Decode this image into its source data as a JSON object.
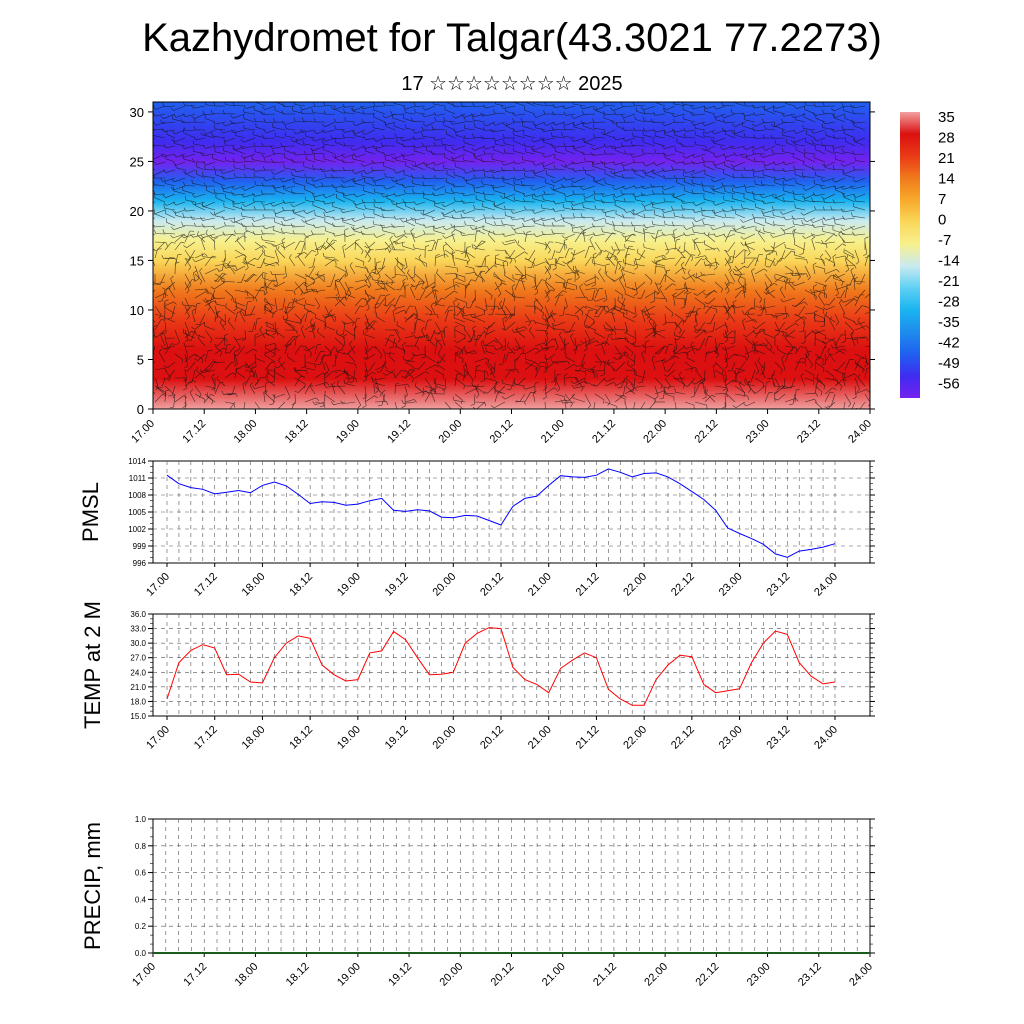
{
  "title": "Kazhydromet for Talgar(43.3021 77.2273)",
  "subtitle": "17 ☆☆☆☆☆☆☆☆ 2025",
  "time_ticks": [
    "17.00",
    "17.12",
    "18.00",
    "18.12",
    "19.00",
    "19.12",
    "20.00",
    "20.12",
    "21.00",
    "21.12",
    "22.00",
    "22.12",
    "23.00",
    "23.12",
    "24.00"
  ],
  "colors": {
    "pmsl_line": "#0000ff",
    "temp_line": "#ff0000",
    "precip_line": "#1a5c1a",
    "grid": "#555555"
  },
  "chart_data": [
    {
      "type": "heatmap",
      "title": "Kazhydromet for Talgar(43.3021 77.2273)",
      "subtitle": "17 ☆☆☆☆☆☆☆☆ 2025",
      "xlabel": "",
      "ylabel": "",
      "ylim": [
        0,
        31
      ],
      "yticks": [
        0,
        5,
        10,
        15,
        20,
        25,
        30
      ],
      "x_tick_labels": [
        "17.00",
        "17.12",
        "18.00",
        "18.12",
        "19.00",
        "19.12",
        "20.00",
        "20.12",
        "21.00",
        "21.12",
        "22.00",
        "22.12",
        "23.00",
        "23.12",
        "24.00"
      ],
      "colorbar_labels": [
        "35",
        "28",
        "21",
        "14",
        "7",
        "0",
        "-7",
        "-14",
        "-21",
        "-28",
        "-35",
        "-42",
        "-49",
        "-56"
      ],
      "colorbar_values": [
        35,
        28,
        21,
        14,
        7,
        0,
        -7,
        -14,
        -21,
        -28,
        -35,
        -42,
        -49,
        -56
      ],
      "temperature_profile": [
        {
          "height": 0,
          "value": 32
        },
        {
          "height": 3,
          "value": 28
        },
        {
          "height": 6,
          "value": 24
        },
        {
          "height": 9,
          "value": 18
        },
        {
          "height": 12,
          "value": 10
        },
        {
          "height": 15,
          "value": 0
        },
        {
          "height": 17,
          "value": -8
        },
        {
          "height": 19,
          "value": -20
        },
        {
          "height": 21,
          "value": -30
        },
        {
          "height": 23,
          "value": -42
        },
        {
          "height": 25,
          "value": -56
        },
        {
          "height": 27,
          "value": -50
        },
        {
          "height": 31,
          "value": -46
        }
      ],
      "overlay": "wind barbs"
    },
    {
      "type": "line",
      "ylabel": "PMSL",
      "ylim": [
        996,
        1014
      ],
      "yticks": [
        996,
        999,
        1002,
        1005,
        1008,
        1011,
        1014
      ],
      "x_tick_labels": [
        "17.00",
        "17.12",
        "18.00",
        "18.12",
        "19.00",
        "19.12",
        "20.00",
        "20.12",
        "21.00",
        "21.12",
        "22.00",
        "22.12",
        "23.00",
        "23.12",
        "24.00"
      ],
      "x_hours": [
        0,
        3,
        6,
        9,
        12,
        15,
        18,
        21,
        24,
        27,
        30,
        33,
        36,
        39,
        42,
        45,
        48,
        51,
        54,
        57,
        60,
        63,
        66,
        69,
        72,
        75,
        78,
        81,
        84,
        87,
        90,
        93,
        96,
        99,
        102,
        105,
        108,
        111,
        114,
        117,
        120,
        123,
        126,
        129,
        132,
        135,
        138,
        141,
        144,
        147,
        150,
        153,
        156,
        159,
        162,
        165,
        168
      ],
      "series": [
        {
          "values": [
            1011.5,
            1010,
            1009.3,
            1009,
            1008.2,
            1008.5,
            1008.8,
            1008.4,
            1009.7,
            1010.3,
            1009.6,
            1008.1,
            1006.5,
            1006.8,
            1006.7,
            1006.2,
            1006.4,
            1007,
            1007.4,
            1005.3,
            1005.1,
            1005.4,
            1005.2,
            1004.1,
            1004.0,
            1004.4,
            1004.3,
            1003.5,
            1002.7,
            1006,
            1007.4,
            1007.8,
            1009.7,
            1011.4,
            1011.2,
            1011.1,
            1011.5,
            1012.6,
            1012,
            1011.2,
            1011.8,
            1011.9,
            1011.2,
            1010,
            1008.6,
            1007.2,
            1005.3,
            1002.2,
            1001.2,
            1000.3,
            999.3,
            997.6,
            997.0,
            998.1,
            998.4,
            998.8,
            999.4
          ]
        }
      ]
    },
    {
      "type": "line",
      "ylabel": "TEMP at 2 M",
      "ylim": [
        15,
        36
      ],
      "yticks": [
        "15.0",
        "18.0",
        "21.0",
        "24.0",
        "27.0",
        "30.0",
        "33.0",
        "36.0"
      ],
      "x_tick_labels": [
        "17.00",
        "17.12",
        "18.00",
        "18.12",
        "19.00",
        "19.12",
        "20.00",
        "20.12",
        "21.00",
        "21.12",
        "22.00",
        "22.12",
        "23.00",
        "23.12",
        "24.00"
      ],
      "x_hours": [
        0,
        3,
        6,
        9,
        12,
        15,
        18,
        21,
        24,
        27,
        30,
        33,
        36,
        39,
        42,
        45,
        48,
        51,
        54,
        57,
        60,
        63,
        66,
        69,
        72,
        75,
        78,
        81,
        84,
        87,
        90,
        93,
        96,
        99,
        102,
        105,
        108,
        111,
        114,
        117,
        120,
        123,
        126,
        129,
        132,
        135,
        138,
        141,
        144,
        147,
        150,
        153,
        156,
        159,
        162,
        165,
        168
      ],
      "series": [
        {
          "values": [
            18.5,
            26,
            28.5,
            29.7,
            29,
            23.5,
            23.6,
            22,
            21.8,
            27,
            30,
            31.5,
            31,
            25.5,
            23.5,
            22.2,
            22.5,
            28,
            28.4,
            32.4,
            30.7,
            27,
            23.5,
            23.6,
            24,
            30,
            32,
            33.2,
            33,
            25,
            22.5,
            21.5,
            19.8,
            24.8,
            26.5,
            28,
            27,
            20.5,
            18.5,
            17.2,
            17.2,
            22.5,
            25.5,
            27.5,
            27.2,
            21.5,
            19.8,
            20.2,
            20.6,
            26,
            30,
            32.5,
            31.8,
            26,
            23.2,
            21.6,
            22
          ]
        }
      ]
    },
    {
      "type": "line",
      "ylabel": "PRECIP, mm",
      "ylim": [
        0,
        1
      ],
      "yticks": [
        "0.0",
        "0.2",
        "0.4",
        "0.6",
        "0.8",
        "1.0"
      ],
      "x_tick_labels": [
        "17.00",
        "17.12",
        "18.00",
        "18.12",
        "19.00",
        "19.12",
        "20.00",
        "20.12",
        "21.00",
        "21.12",
        "22.00",
        "22.12",
        "23.00",
        "23.12",
        "24.00"
      ],
      "series": [
        {
          "values": [
            0,
            0,
            0,
            0,
            0,
            0,
            0,
            0,
            0,
            0,
            0,
            0,
            0,
            0,
            0
          ]
        }
      ]
    }
  ]
}
